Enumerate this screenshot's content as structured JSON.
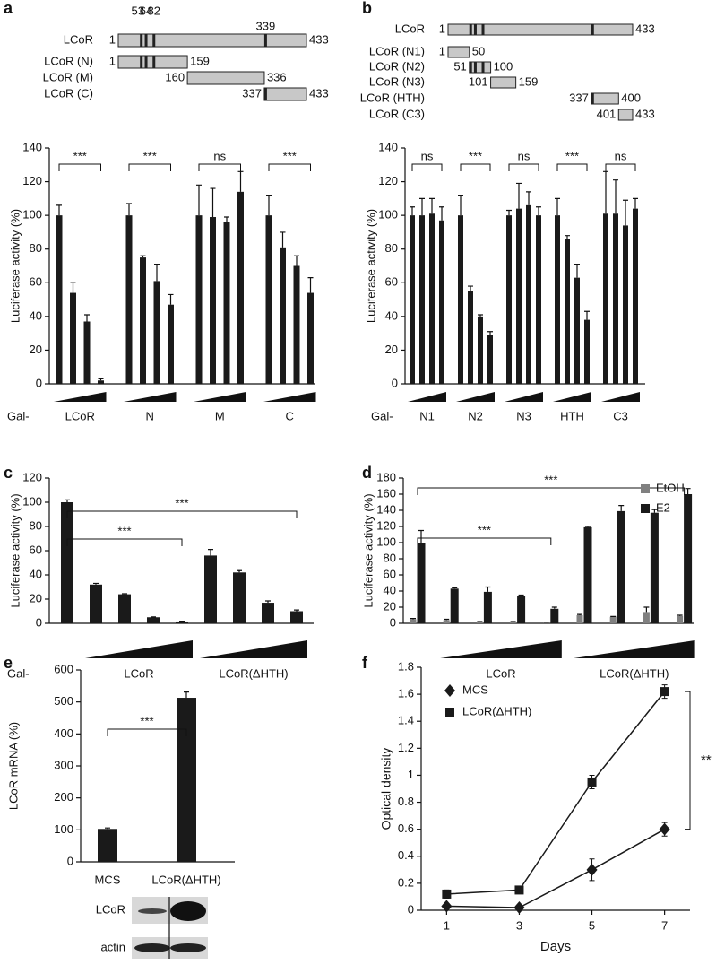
{
  "panel_labels": [
    "a",
    "b",
    "c",
    "d",
    "e",
    "f"
  ],
  "schematics": [
    {
      "constructs": [
        {
          "name": "LCoR",
          "start": 1,
          "end": 433,
          "sites": [
            53,
            64,
            82,
            339
          ]
        },
        {
          "name": "LCoR (N)",
          "start": 1,
          "end": 159
        },
        {
          "name": "LCoR (M)",
          "start": 160,
          "end": 336
        },
        {
          "name": "LCoR (C)",
          "start": 337,
          "end": 433
        }
      ]
    },
    {
      "constructs": [
        {
          "name": "LCoR",
          "start": 1,
          "end": 433
        },
        {
          "name": "LCoR (N1)",
          "start": 1,
          "end": 50
        },
        {
          "name": "LCoR (N2)",
          "start": 51,
          "end": 100
        },
        {
          "name": "LCoR (N3)",
          "start": 101,
          "end": 159
        },
        {
          "name": "LCoR (HTH)",
          "start": 337,
          "end": 400
        },
        {
          "name": "LCoR (C3)",
          "start": 401,
          "end": 433
        }
      ]
    }
  ],
  "chart_data": [
    {
      "type": "bar",
      "ylabel": "Luciferase activity (%)",
      "xlabel_prefix": "Gal-",
      "color": "#1a1a1a",
      "ylim": [
        0,
        140
      ],
      "yticks": [
        0,
        20,
        40,
        60,
        80,
        100,
        120,
        140
      ],
      "values": [
        100,
        54,
        37,
        2,
        100,
        75,
        61,
        47,
        100,
        99,
        96,
        114,
        100,
        81,
        70,
        54
      ],
      "errors": [
        6,
        6,
        4,
        1,
        7,
        1,
        10,
        6,
        18,
        17,
        3,
        12,
        12,
        9,
        6,
        9
      ],
      "groups": [
        {
          "label": "LCoR",
          "significance": "***"
        },
        {
          "label": "N",
          "significance": "***"
        },
        {
          "label": "M",
          "significance": "ns"
        },
        {
          "label": "C",
          "significance": "***"
        }
      ]
    },
    {
      "type": "bar",
      "ylabel": "Luciferase activity (%)",
      "xlabel_prefix": "Gal-",
      "color": "#1a1a1a",
      "ylim": [
        0,
        140
      ],
      "yticks": [
        0,
        20,
        40,
        60,
        80,
        100,
        120,
        140
      ],
      "values": [
        100,
        100,
        101,
        97,
        100,
        55,
        40,
        29,
        100,
        104,
        106,
        100,
        100,
        86,
        63,
        38,
        101,
        101,
        94,
        104
      ],
      "errors": [
        5,
        10,
        9,
        8,
        12,
        3,
        1,
        2,
        3,
        15,
        8,
        5,
        10,
        2,
        8,
        5,
        25,
        20,
        15,
        6
      ],
      "groups": [
        {
          "label": "N1",
          "significance": "ns"
        },
        {
          "label": "N2",
          "significance": "***"
        },
        {
          "label": "N3",
          "significance": "ns"
        },
        {
          "label": "HTH",
          "significance": "***"
        },
        {
          "label": "C3",
          "significance": "ns"
        }
      ]
    },
    {
      "type": "bar",
      "ylabel": "Luciferase activity (%)",
      "xlabel_prefix": "Gal-",
      "color": "#1a1a1a",
      "ylim": [
        0,
        120
      ],
      "yticks": [
        0,
        20,
        40,
        60,
        80,
        100,
        120
      ],
      "values": [
        100,
        32,
        24,
        5,
        1.5,
        56,
        42,
        17,
        10
      ],
      "errors": [
        2,
        1,
        0.5,
        0.3,
        0.3,
        5,
        1.5,
        1.5,
        1
      ],
      "groups": [
        {
          "label": "LCoR"
        },
        {
          "label": "LCoR(ΔHTH)"
        }
      ],
      "brackets": [
        {
          "label": "***"
        },
        {
          "label": "***"
        }
      ]
    },
    {
      "type": "bar",
      "ylabel": "Luciferase activity (%)",
      "ylim": [
        0,
        180
      ],
      "yticks": [
        0,
        20,
        40,
        60,
        80,
        100,
        120,
        140,
        160,
        180
      ],
      "legend": "upper right",
      "series": [
        {
          "name": "EtOH",
          "color": "#808080",
          "values": [
            5,
            4,
            2,
            2,
            1,
            10,
            8,
            14,
            9
          ],
          "errors": [
            1,
            1,
            0.3,
            0.3,
            0.3,
            1,
            0.5,
            6,
            1
          ]
        },
        {
          "name": "E2",
          "color": "#1a1a1a",
          "values": [
            100,
            43,
            39,
            34,
            18,
            119,
            139,
            137,
            160
          ],
          "errors": [
            15,
            1,
            6,
            1,
            2,
            1,
            7,
            4,
            7
          ]
        }
      ],
      "groups": [
        {
          "label": "LCoR"
        },
        {
          "label": "LCoR(ΔHTH)"
        }
      ],
      "brackets": [
        {
          "label": "***"
        },
        {
          "label": "***"
        }
      ]
    },
    {
      "type": "bar",
      "ylabel": "LCoR mRNA (%)",
      "color": "#1a1a1a",
      "ylim": [
        0,
        600
      ],
      "yticks": [
        0,
        100,
        200,
        300,
        400,
        500,
        600
      ],
      "categories": [
        "MCS",
        "LCoR(ΔHTH)"
      ],
      "values": [
        103,
        513
      ],
      "errors": [
        3,
        18
      ],
      "brackets": [
        {
          "label": "***"
        }
      ]
    },
    {
      "type": "line",
      "xlabel": "Days",
      "ylabel": "Optical density",
      "x": [
        1,
        3,
        5,
        7
      ],
      "xlim": [
        0.3,
        7.7
      ],
      "xticks": [
        1,
        3,
        5,
        7
      ],
      "ylim": [
        0,
        1.8
      ],
      "yticks": [
        0,
        0.2,
        0.4,
        0.6,
        0.8,
        1,
        1.2,
        1.4,
        1.6,
        1.8
      ],
      "legend": "upper left",
      "annotation": "**",
      "series": [
        {
          "name": "MCS",
          "marker": "diamond",
          "color": "#1a1a1a",
          "values": [
            0.03,
            0.02,
            0.3,
            0.6
          ],
          "errors": [
            0.02,
            0.02,
            0.08,
            0.05
          ]
        },
        {
          "name": "LCoR(ΔHTH)",
          "marker": "square",
          "color": "#1a1a1a",
          "values": [
            0.12,
            0.15,
            0.95,
            1.62
          ],
          "errors": [
            0.03,
            0.02,
            0.05,
            0.05
          ]
        }
      ]
    }
  ],
  "blot": {
    "rows": [
      "LCoR",
      "actin"
    ]
  }
}
